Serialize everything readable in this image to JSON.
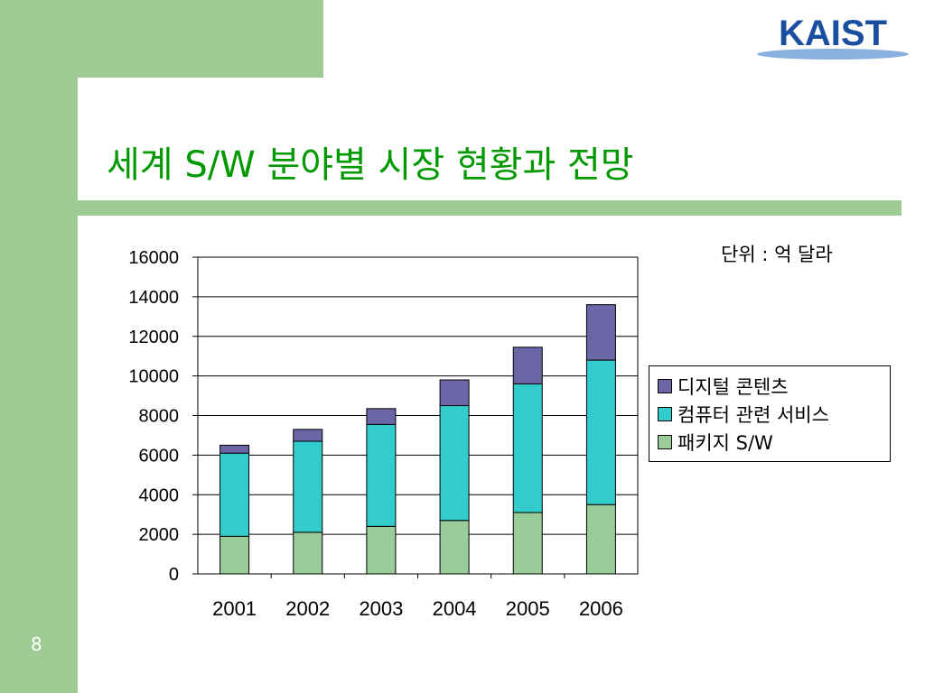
{
  "slide": {
    "title": "세계 S/W 분야별 시장 현황과 전망",
    "unit_label": "단위 : 억 달라",
    "page_number": "8",
    "logo_text": "KAIST"
  },
  "colors": {
    "frame_green": "#9dcb93",
    "title_green": "#009900",
    "logo_blue": "#1a4fa0",
    "digital_contents": "#6b66a6",
    "computer_services": "#33cccc",
    "package_sw": "#99cc99"
  },
  "chart_data": {
    "type": "bar",
    "stacked": true,
    "categories": [
      "2001",
      "2002",
      "2003",
      "2004",
      "2005",
      "2006"
    ],
    "series": [
      {
        "name": "패키지 S/W",
        "color": "#99cc99",
        "values": [
          1900,
          2100,
          2400,
          2700,
          3100,
          3500
        ]
      },
      {
        "name": "컴퓨터 관련 서비스",
        "color": "#33cccc",
        "values": [
          4200,
          4600,
          5150,
          5800,
          6500,
          7300
        ]
      },
      {
        "name": "디지털 콘텐츠",
        "color": "#6b66a6",
        "values": [
          400,
          600,
          800,
          1300,
          1850,
          2800
        ]
      }
    ],
    "legend_order": [
      "디지털 콘텐츠",
      "컴퓨터 관련 서비스",
      "패키지 S/W"
    ],
    "yticks": [
      "0",
      "2000",
      "4000",
      "6000",
      "8000",
      "10000",
      "12000",
      "14000",
      "16000"
    ],
    "ylim": [
      0,
      16000
    ],
    "grid": true,
    "legend_position": "right"
  }
}
